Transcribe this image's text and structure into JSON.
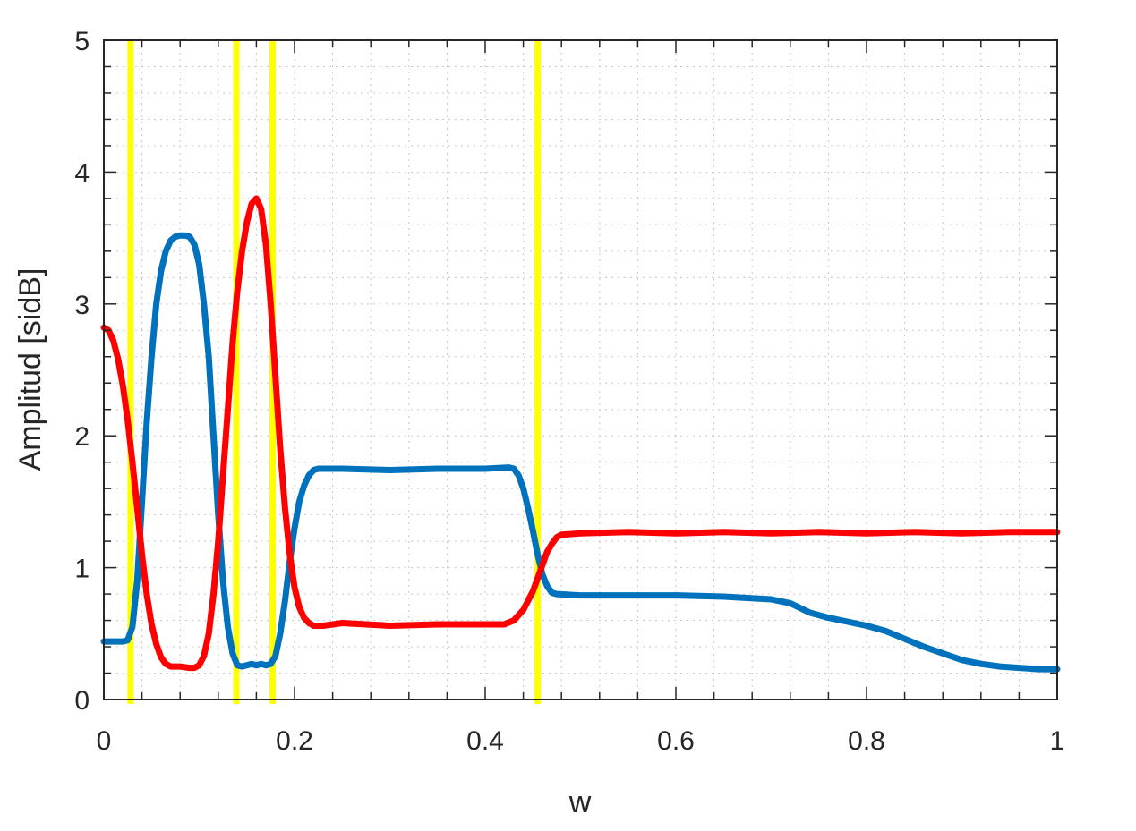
{
  "chart_data": {
    "type": "line",
    "title": "",
    "xlabel": "w",
    "ylabel": "Amplitud [sidB]",
    "xlim": [
      0,
      1
    ],
    "ylim": [
      0,
      5
    ],
    "x_ticks": [
      "0",
      "0.2",
      "0.4",
      "0.6",
      "0.8",
      "1"
    ],
    "y_ticks": [
      "0",
      "1",
      "2",
      "3",
      "4",
      "5"
    ],
    "grid": "minor dotted",
    "legend": "none",
    "series": [
      {
        "color": "#0072BD",
        "points": [
          [
            0,
            0.44
          ],
          [
            0.02,
            0.44
          ],
          [
            0.025,
            0.45
          ],
          [
            0.03,
            0.55
          ],
          [
            0.035,
            0.9
          ],
          [
            0.04,
            1.5
          ],
          [
            0.045,
            2.1
          ],
          [
            0.05,
            2.6
          ],
          [
            0.055,
            3.0
          ],
          [
            0.06,
            3.25
          ],
          [
            0.065,
            3.4
          ],
          [
            0.07,
            3.48
          ],
          [
            0.075,
            3.51
          ],
          [
            0.08,
            3.52
          ],
          [
            0.085,
            3.52
          ],
          [
            0.09,
            3.51
          ],
          [
            0.095,
            3.45
          ],
          [
            0.1,
            3.3
          ],
          [
            0.105,
            3.0
          ],
          [
            0.11,
            2.6
          ],
          [
            0.115,
            2.0
          ],
          [
            0.12,
            1.4
          ],
          [
            0.125,
            0.9
          ],
          [
            0.13,
            0.55
          ],
          [
            0.135,
            0.35
          ],
          [
            0.14,
            0.26
          ],
          [
            0.145,
            0.25
          ],
          [
            0.15,
            0.26
          ],
          [
            0.155,
            0.27
          ],
          [
            0.16,
            0.26
          ],
          [
            0.165,
            0.27
          ],
          [
            0.17,
            0.26
          ],
          [
            0.175,
            0.27
          ],
          [
            0.18,
            0.33
          ],
          [
            0.185,
            0.5
          ],
          [
            0.19,
            0.75
          ],
          [
            0.195,
            1.05
          ],
          [
            0.2,
            1.3
          ],
          [
            0.205,
            1.5
          ],
          [
            0.21,
            1.62
          ],
          [
            0.215,
            1.7
          ],
          [
            0.22,
            1.74
          ],
          [
            0.225,
            1.75
          ],
          [
            0.25,
            1.75
          ],
          [
            0.3,
            1.74
          ],
          [
            0.35,
            1.75
          ],
          [
            0.4,
            1.75
          ],
          [
            0.425,
            1.76
          ],
          [
            0.43,
            1.75
          ],
          [
            0.435,
            1.7
          ],
          [
            0.44,
            1.6
          ],
          [
            0.445,
            1.45
          ],
          [
            0.45,
            1.28
          ],
          [
            0.455,
            1.1
          ],
          [
            0.46,
            0.95
          ],
          [
            0.465,
            0.86
          ],
          [
            0.47,
            0.81
          ],
          [
            0.475,
            0.8
          ],
          [
            0.5,
            0.79
          ],
          [
            0.55,
            0.79
          ],
          [
            0.6,
            0.79
          ],
          [
            0.65,
            0.78
          ],
          [
            0.7,
            0.76
          ],
          [
            0.72,
            0.73
          ],
          [
            0.74,
            0.66
          ],
          [
            0.76,
            0.62
          ],
          [
            0.78,
            0.59
          ],
          [
            0.8,
            0.56
          ],
          [
            0.82,
            0.52
          ],
          [
            0.84,
            0.46
          ],
          [
            0.86,
            0.4
          ],
          [
            0.88,
            0.35
          ],
          [
            0.9,
            0.3
          ],
          [
            0.92,
            0.27
          ],
          [
            0.94,
            0.25
          ],
          [
            0.96,
            0.24
          ],
          [
            0.98,
            0.23
          ],
          [
            1.0,
            0.23
          ]
        ]
      },
      {
        "color": "#FF0000",
        "points": [
          [
            0,
            2.82
          ],
          [
            0.005,
            2.8
          ],
          [
            0.01,
            2.72
          ],
          [
            0.015,
            2.58
          ],
          [
            0.02,
            2.38
          ],
          [
            0.025,
            2.12
          ],
          [
            0.03,
            1.8
          ],
          [
            0.035,
            1.45
          ],
          [
            0.04,
            1.1
          ],
          [
            0.045,
            0.8
          ],
          [
            0.05,
            0.57
          ],
          [
            0.055,
            0.42
          ],
          [
            0.06,
            0.32
          ],
          [
            0.065,
            0.27
          ],
          [
            0.07,
            0.25
          ],
          [
            0.08,
            0.25
          ],
          [
            0.09,
            0.24
          ],
          [
            0.095,
            0.24
          ],
          [
            0.1,
            0.26
          ],
          [
            0.105,
            0.33
          ],
          [
            0.11,
            0.5
          ],
          [
            0.115,
            0.8
          ],
          [
            0.12,
            1.2
          ],
          [
            0.125,
            1.7
          ],
          [
            0.13,
            2.2
          ],
          [
            0.135,
            2.7
          ],
          [
            0.14,
            3.1
          ],
          [
            0.145,
            3.4
          ],
          [
            0.15,
            3.62
          ],
          [
            0.155,
            3.76
          ],
          [
            0.16,
            3.8
          ],
          [
            0.165,
            3.72
          ],
          [
            0.17,
            3.45
          ],
          [
            0.175,
            3.0
          ],
          [
            0.18,
            2.45
          ],
          [
            0.185,
            1.9
          ],
          [
            0.19,
            1.45
          ],
          [
            0.195,
            1.1
          ],
          [
            0.2,
            0.85
          ],
          [
            0.205,
            0.7
          ],
          [
            0.21,
            0.62
          ],
          [
            0.215,
            0.58
          ],
          [
            0.22,
            0.56
          ],
          [
            0.23,
            0.56
          ],
          [
            0.25,
            0.58
          ],
          [
            0.3,
            0.56
          ],
          [
            0.35,
            0.57
          ],
          [
            0.4,
            0.57
          ],
          [
            0.42,
            0.57
          ],
          [
            0.43,
            0.6
          ],
          [
            0.44,
            0.68
          ],
          [
            0.45,
            0.82
          ],
          [
            0.455,
            0.92
          ],
          [
            0.46,
            1.02
          ],
          [
            0.465,
            1.12
          ],
          [
            0.47,
            1.18
          ],
          [
            0.475,
            1.23
          ],
          [
            0.48,
            1.25
          ],
          [
            0.5,
            1.26
          ],
          [
            0.55,
            1.27
          ],
          [
            0.6,
            1.26
          ],
          [
            0.65,
            1.27
          ],
          [
            0.7,
            1.26
          ],
          [
            0.75,
            1.27
          ],
          [
            0.8,
            1.26
          ],
          [
            0.85,
            1.27
          ],
          [
            0.9,
            1.26
          ],
          [
            0.95,
            1.27
          ],
          [
            1.0,
            1.27
          ]
        ]
      }
    ],
    "vertical_lines": {
      "color": "#FFFF00",
      "x": [
        0.028,
        0.139,
        0.177,
        0.455
      ]
    }
  }
}
